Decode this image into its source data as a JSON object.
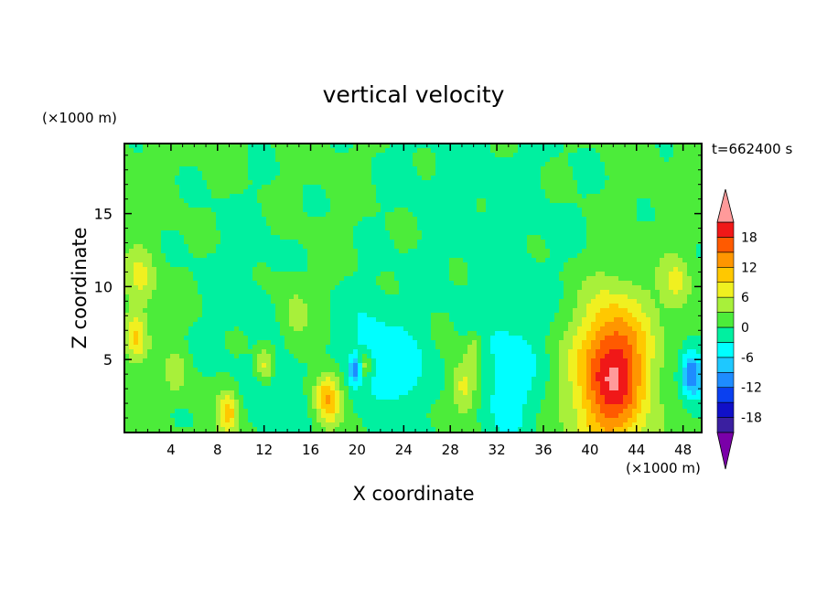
{
  "chart_data": {
    "type": "heatmap",
    "title": "vertical velocity",
    "time_label": "t=662400 s",
    "xlabel": "X coordinate",
    "ylabel": "Z coordinate",
    "x_unit": "(×1000 m)",
    "y_unit": "(×1000 m)",
    "xlim": [
      0,
      49.6
    ],
    "ylim": [
      0,
      19.8
    ],
    "x_ticks": [
      4,
      8,
      12,
      16,
      20,
      24,
      28,
      32,
      36,
      40,
      44,
      48
    ],
    "y_ticks": [
      5,
      10,
      15
    ],
    "colorbar": {
      "labels": [
        18,
        12,
        6,
        0,
        -6,
        -12,
        -18
      ],
      "levels": [
        -21,
        -18,
        -15,
        -12,
        -9,
        -6,
        -3,
        0,
        3,
        6,
        9,
        12,
        15,
        18,
        21
      ],
      "colors": [
        "#7a00a8",
        "#3a1fa0",
        "#1010c8",
        "#0a40f0",
        "#1e8cff",
        "#1ec8ff",
        "#00ffff",
        "#00f0a0",
        "#4cec3a",
        "#a8f03a",
        "#f0f020",
        "#ffc800",
        "#ff9600",
        "#ff5a00",
        "#f01818",
        "#ff9a9a"
      ],
      "extend": "both"
    },
    "features": [
      {
        "x": 41.5,
        "z": 3.4,
        "w": 3.2,
        "peak": 13.5
      },
      {
        "x": 42.5,
        "z": 5.0,
        "w": 2.8,
        "peak": 8
      },
      {
        "x": 17.5,
        "z": 2.4,
        "w": 1.1,
        "peak": 12
      },
      {
        "x": 8.9,
        "z": 1.3,
        "w": 0.9,
        "peak": 10
      },
      {
        "x": 29.2,
        "z": 3.2,
        "w": 1.2,
        "peak": 8
      },
      {
        "x": 1.0,
        "z": 6.5,
        "w": 1.0,
        "peak": 9
      },
      {
        "x": 1.4,
        "z": 10.5,
        "w": 1.3,
        "peak": 6
      },
      {
        "x": 12.1,
        "z": 4.6,
        "w": 0.8,
        "peak": 8
      },
      {
        "x": 20.7,
        "z": 4.6,
        "w": 0.5,
        "peak": 7
      },
      {
        "x": 14.5,
        "z": 8.0,
        "w": 1.5,
        "peak": 4
      },
      {
        "x": 47.4,
        "z": 10.2,
        "w": 1.2,
        "peak": 6
      },
      {
        "x": 4.5,
        "z": 4.0,
        "w": 1.0,
        "peak": 4
      },
      {
        "x": 30.0,
        "z": 5.8,
        "w": 0.7,
        "peak": 5
      },
      {
        "x": 48.8,
        "z": 4.0,
        "w": 1.0,
        "peak": -14
      },
      {
        "x": 19.8,
        "z": 4.2,
        "w": 0.5,
        "peak": -10
      },
      {
        "x": 21.0,
        "z": 5.5,
        "w": 2.5,
        "peak": -5
      },
      {
        "x": 33.0,
        "z": 3.5,
        "w": 2.8,
        "peak": -5
      },
      {
        "x": 13.5,
        "z": 2.5,
        "w": 2.2,
        "peak": -3.5
      },
      {
        "x": 24.5,
        "z": 4.0,
        "w": 2.0,
        "peak": -4.5
      },
      {
        "x": 10.0,
        "z": 10.0,
        "w": 5.0,
        "peak": -2
      },
      {
        "x": 34.0,
        "z": 13.0,
        "w": 7.0,
        "peak": -1.6
      },
      {
        "x": 26.0,
        "z": 17.0,
        "w": 6.0,
        "peak": -1.3
      }
    ]
  }
}
